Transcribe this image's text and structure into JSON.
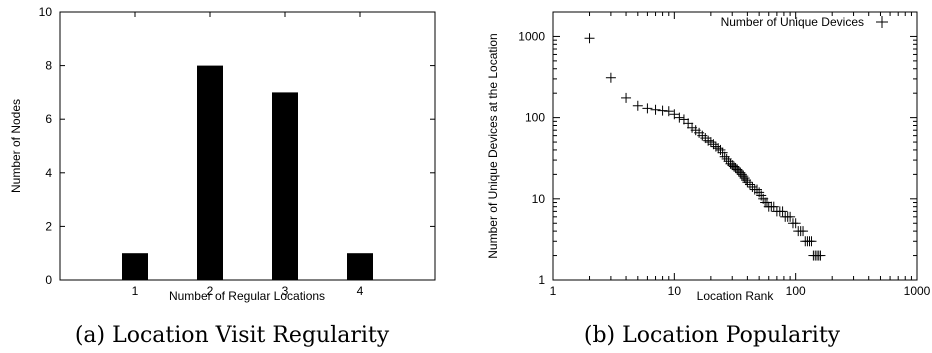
{
  "chart_data": [
    {
      "type": "bar",
      "caption": "(a) Location Visit Regularity",
      "xlabel": "Number of Regular Locations",
      "ylabel": "Number of Nodes",
      "categories": [
        "1",
        "2",
        "3",
        "4"
      ],
      "values": [
        1,
        8,
        7,
        1
      ],
      "xlim": [
        0,
        5
      ],
      "ylim": [
        0,
        10
      ],
      "yticks": [
        0,
        2,
        4,
        6,
        8,
        10
      ],
      "grid": false,
      "bar_color": "#000000"
    },
    {
      "type": "scatter",
      "caption": "(b) Location Popularity",
      "xlabel": "Location Rank",
      "ylabel": "Number of Unique  Devices at the Location",
      "xscale": "log",
      "yscale": "log",
      "xlim": [
        1,
        1000
      ],
      "ylim": [
        1,
        2000
      ],
      "xticks": [
        1,
        10,
        100,
        1000
      ],
      "yticks": [
        1,
        10,
        100,
        1000
      ],
      "legend_position": "top-right",
      "grid": false,
      "series": [
        {
          "name": "Number of Unique Devices",
          "marker": "+",
          "x": [
            2,
            3,
            4,
            5,
            6,
            7,
            8,
            9,
            10,
            11,
            12,
            13,
            14,
            15,
            16,
            17,
            18,
            19,
            20,
            21,
            22,
            23,
            24,
            25,
            26,
            27,
            28,
            29,
            30,
            31,
            32,
            33,
            34,
            35,
            36,
            37,
            38,
            39,
            40,
            42,
            44,
            46,
            48,
            50,
            52,
            54,
            56,
            58,
            60,
            63,
            66,
            70,
            74,
            78,
            82,
            86,
            90,
            95,
            100,
            105,
            110,
            115,
            120,
            125,
            130,
            135,
            140,
            145,
            150,
            155,
            160
          ],
          "y": [
            950,
            310,
            175,
            140,
            130,
            125,
            122,
            120,
            110,
            100,
            95,
            85,
            75,
            70,
            65,
            60,
            56,
            52,
            50,
            47,
            44,
            42,
            40,
            37,
            33,
            31,
            29,
            27,
            26,
            25,
            24,
            23,
            22,
            21,
            20,
            19,
            18,
            17,
            16,
            15,
            14,
            13,
            13,
            12,
            11,
            10,
            9,
            9,
            8,
            8,
            8,
            7,
            7,
            7,
            6,
            6,
            6,
            5,
            5,
            4,
            4,
            4,
            3,
            3,
            3,
            3,
            2,
            2,
            2,
            2,
            2
          ]
        }
      ]
    }
  ]
}
